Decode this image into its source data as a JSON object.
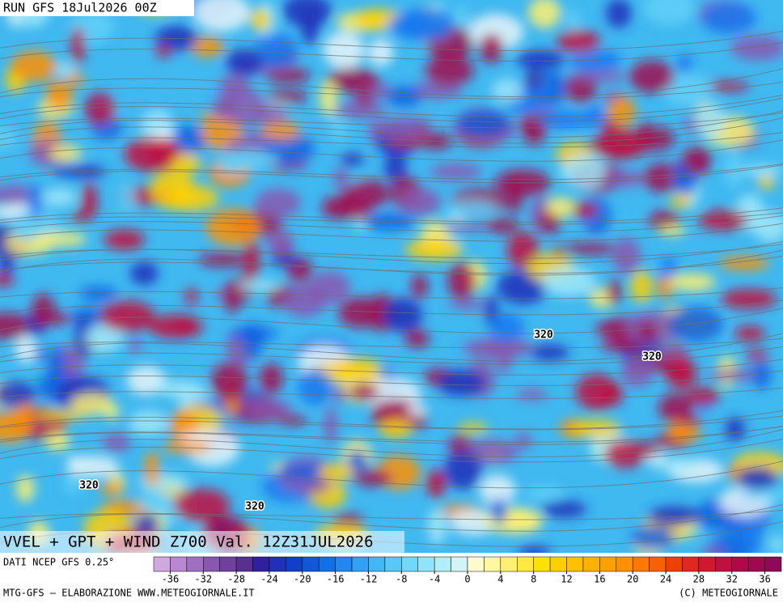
{
  "run_label": "RUN GFS 18Jul2026 00Z",
  "map_title": "VVEL + GPT + WIND Z700 Val. 12Z31JUL2026",
  "contour_labels": [
    "320",
    "320",
    "320",
    "320"
  ],
  "source": "DATI NCEP GFS 0.25°",
  "footer_left": "MTG-GFS — ELABORAZIONE WWW.METEOGIORNALE.IT",
  "footer_right": "(C) METEOGIORNALE",
  "colorbar": {
    "bins": [
      -38,
      -36,
      -34,
      -32,
      -30,
      -28,
      -26,
      -24,
      -22,
      -20,
      -18,
      -16,
      -14,
      -12,
      -10,
      -8,
      -6,
      -4,
      -2,
      0,
      2,
      4,
      6,
      8,
      10,
      12,
      14,
      16,
      18,
      20,
      22,
      24,
      26,
      28,
      30,
      32,
      34,
      36,
      38
    ],
    "colors": [
      "#d0a8e0",
      "#b888d0",
      "#a070c0",
      "#8858b0",
      "#7040a0",
      "#583090",
      "#3020a0",
      "#2030b8",
      "#1040c8",
      "#1058d8",
      "#1070e8",
      "#2088f0",
      "#30a0f8",
      "#40b8f8",
      "#58c8f8",
      "#70d8f8",
      "#90e4f8",
      "#b0eef8",
      "#d0f4f8",
      "#fffbd0",
      "#fff8a0",
      "#fff070",
      "#ffe840",
      "#ffe000",
      "#ffd000",
      "#ffc000",
      "#ffb000",
      "#ffa000",
      "#ff9000",
      "#ff7800",
      "#f86000",
      "#f04000",
      "#e02820",
      "#d01830",
      "#c01040",
      "#b00848",
      "#a00850",
      "#900858"
    ],
    "ticks": [
      -36,
      -32,
      -28,
      -24,
      -20,
      -16,
      -12,
      -8,
      -4,
      0,
      4,
      8,
      12,
      16,
      20,
      24,
      28,
      32,
      36
    ]
  }
}
